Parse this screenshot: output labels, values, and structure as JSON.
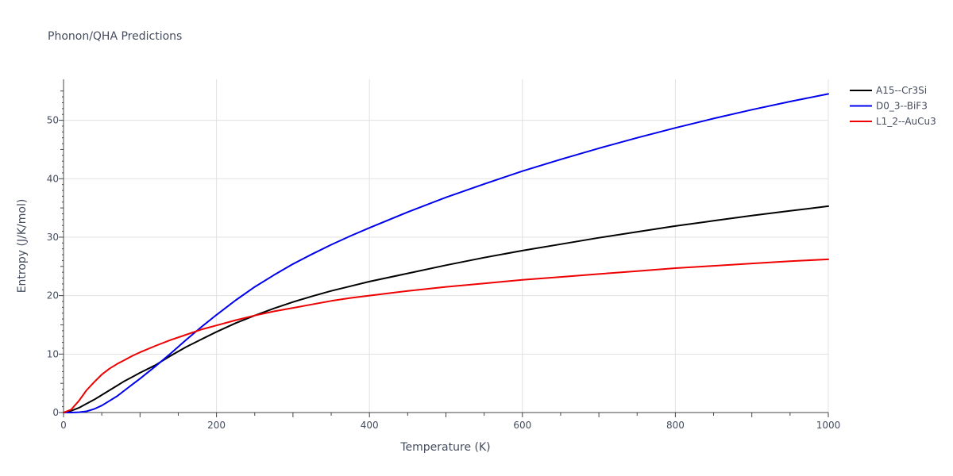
{
  "chart_data": {
    "type": "line",
    "title": "Phonon/QHA Predictions",
    "xlabel": "Temperature (K)",
    "ylabel": "Entropy (J/K/mol)",
    "xlim": [
      0,
      1000
    ],
    "ylim": [
      0,
      57
    ],
    "xticks": [
      0,
      200,
      400,
      600,
      800,
      1000
    ],
    "yticks": [
      0,
      10,
      20,
      30,
      40,
      50
    ],
    "grid": true,
    "legend_position": "top-right",
    "x": [
      0,
      10,
      20,
      30,
      40,
      50,
      60,
      70,
      80,
      90,
      100,
      120,
      140,
      160,
      180,
      200,
      225,
      250,
      275,
      300,
      325,
      350,
      375,
      400,
      450,
      500,
      550,
      600,
      650,
      700,
      750,
      800,
      850,
      900,
      950,
      1000
    ],
    "series": [
      {
        "name": "A15--Cr3Si",
        "color": "#000000",
        "values": [
          0,
          0.3,
          0.8,
          1.5,
          2.2,
          3.0,
          3.8,
          4.6,
          5.4,
          6.1,
          6.8,
          8.1,
          9.7,
          11.2,
          12.5,
          13.8,
          15.3,
          16.6,
          17.8,
          18.9,
          19.9,
          20.8,
          21.6,
          22.4,
          23.8,
          25.2,
          26.5,
          27.7,
          28.8,
          29.9,
          30.9,
          31.9,
          32.8,
          33.7,
          34.5,
          35.3
        ]
      },
      {
        "name": "D0_3--BiF3",
        "color": "#0000ee",
        "values": [
          0,
          0.0,
          0.05,
          0.2,
          0.6,
          1.2,
          2.0,
          2.8,
          3.8,
          4.8,
          5.8,
          7.9,
          10.1,
          12.4,
          14.6,
          16.7,
          19.2,
          21.5,
          23.5,
          25.4,
          27.1,
          28.7,
          30.2,
          31.6,
          34.3,
          36.8,
          39.1,
          41.3,
          43.3,
          45.2,
          47.0,
          48.7,
          50.3,
          51.8,
          53.2,
          54.5
        ]
      },
      {
        "name": "L1_2--AuCu3",
        "color": "#ee0000",
        "values": [
          0,
          0.5,
          2.0,
          3.8,
          5.2,
          6.5,
          7.5,
          8.3,
          9.0,
          9.7,
          10.3,
          11.4,
          12.4,
          13.3,
          14.2,
          14.9,
          15.8,
          16.6,
          17.3,
          17.9,
          18.5,
          19.1,
          19.6,
          20.0,
          20.8,
          21.5,
          22.1,
          22.7,
          23.2,
          23.7,
          24.2,
          24.7,
          25.1,
          25.5,
          25.9,
          26.2
        ]
      }
    ]
  }
}
